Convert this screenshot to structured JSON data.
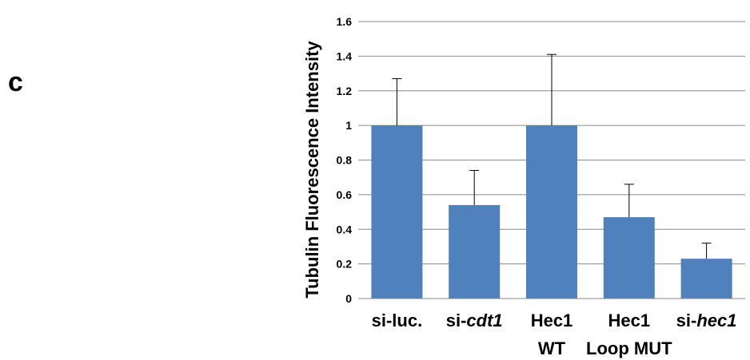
{
  "panel_label": "c",
  "chart_data": {
    "type": "bar",
    "title": "",
    "xlabel": "",
    "ylabel": "Tubulin Fluorescence Intensity",
    "ylim": [
      0,
      1.6
    ],
    "yticks": [
      "0",
      "0.2",
      "0.4",
      "0.6",
      "0.8",
      "1",
      "1.2",
      "1.4",
      "1.6"
    ],
    "grid": true,
    "categories": [
      {
        "line1": [
          {
            "t": "si-luc.",
            "i": false
          }
        ],
        "line2": []
      },
      {
        "line1": [
          {
            "t": "si-",
            "i": false
          },
          {
            "t": "cdt1",
            "i": true
          }
        ],
        "line2": []
      },
      {
        "line1": [
          {
            "t": "Hec1",
            "i": false
          }
        ],
        "line2": [
          {
            "t": "WT",
            "i": false
          }
        ]
      },
      {
        "line1": [
          {
            "t": "Hec1",
            "i": false
          }
        ],
        "line2": [
          {
            "t": "Loop MUT",
            "i": false
          }
        ]
      },
      {
        "line1": [
          {
            "t": "si-",
            "i": false
          },
          {
            "t": "hec1",
            "i": true
          }
        ],
        "line2": []
      }
    ],
    "values": [
      1.0,
      0.54,
      1.0,
      0.47,
      0.23
    ],
    "errors": [
      0.27,
      0.2,
      0.41,
      0.19,
      0.09
    ],
    "bar_color": "#4f81bd"
  }
}
